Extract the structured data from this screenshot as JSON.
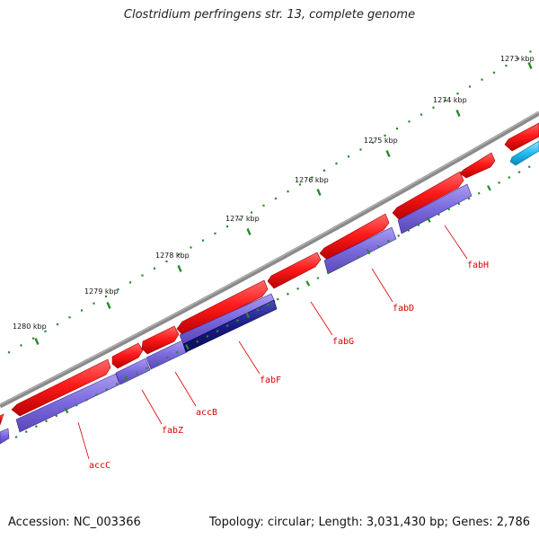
{
  "title": "Clostridium perfringens str. 13, complete genome",
  "accession": "Accession: NC_003366",
  "summary": "Topology: circular; Length: 3,031,430 bp; Genes: 2,786",
  "ticks": [
    {
      "label": "1273 kbp"
    },
    {
      "label": "1274 kbp"
    },
    {
      "label": "1275 kbp"
    },
    {
      "label": "1276 kbp"
    },
    {
      "label": "1277 kbp"
    },
    {
      "label": "1278 kbp"
    },
    {
      "label": "1279 kbp"
    },
    {
      "label": "1280 kbp"
    }
  ],
  "genes": [
    {
      "name": "fabH"
    },
    {
      "name": "fabD"
    },
    {
      "name": "fabG"
    },
    {
      "name": "fabF"
    },
    {
      "name": "accB"
    },
    {
      "name": "fabZ"
    },
    {
      "name": "accC"
    }
  ],
  "colors": {
    "backbone": "#7a7a7a",
    "cds": "#ee1111",
    "gene_track": "#7766dd",
    "highlight_gene": "#1a1a88",
    "other_feature": "#22bbee",
    "tick": "#2a8a2a",
    "label": "#dd0000"
  }
}
